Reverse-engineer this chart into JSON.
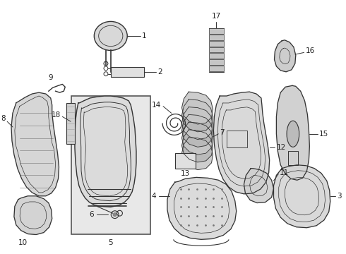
{
  "background_color": "#ffffff",
  "fig_width": 4.9,
  "fig_height": 3.6,
  "dpi": 100,
  "line_color": "#333333",
  "label_color": "#222222",
  "font_size": 7.5,
  "box_color": "#e8e8e8",
  "box_edge": "#555555"
}
